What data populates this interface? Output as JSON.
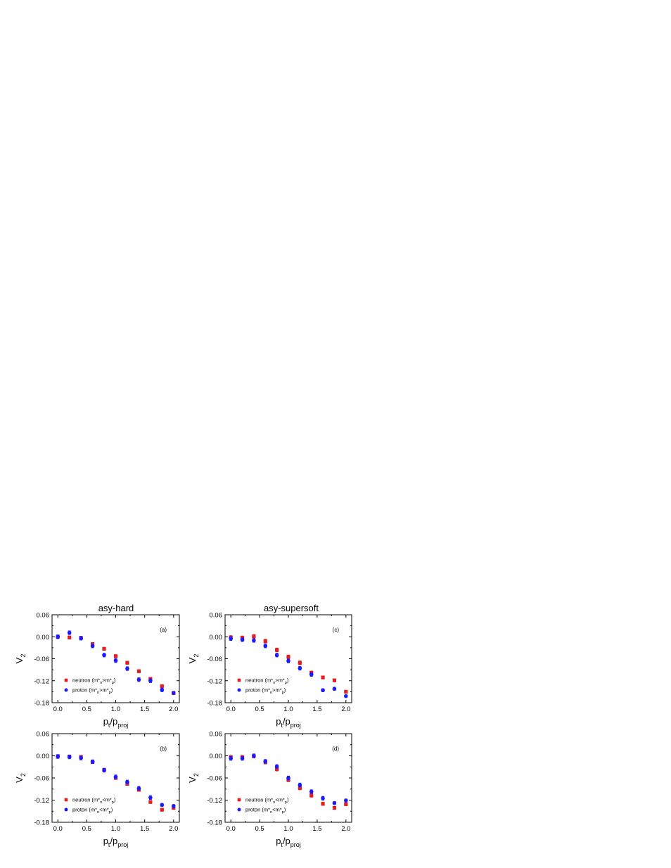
{
  "column_titles": {
    "left": "asy-hard",
    "right": "asy-supersoft"
  },
  "colors": {
    "neutron": "#e41e1e",
    "proton": "#1a1aff",
    "axis": "#000000"
  },
  "chart_data": [
    {
      "type": "scatter",
      "panel_label": "(a)",
      "xlabel": {
        "main": "p",
        "sub1": "t",
        "mid": "/p",
        "sub2": "proj"
      },
      "ylabel": {
        "main": "V",
        "sub": "2"
      },
      "xlim": [
        -0.1,
        2.1
      ],
      "ylim": [
        -0.18,
        0.06
      ],
      "xticks": [
        "0.0",
        "0.5",
        "1.0",
        "1.5",
        "2.0"
      ],
      "yticks": [
        "0.06",
        "0.00",
        "-0.06",
        "-0.12",
        "-0.18"
      ],
      "legend_position": "bottom-left",
      "series": [
        {
          "name": "neutron",
          "marker": "square",
          "legend": {
            "pre": "neutron (m*",
            "s1": "n",
            "mid": ">m*",
            "s2": "p",
            "post": ")"
          },
          "x": [
            0.0,
            0.2,
            0.4,
            0.6,
            0.8,
            1.0,
            1.2,
            1.4,
            1.6,
            1.8,
            2.0
          ],
          "y": [
            0.0,
            -0.002,
            -0.003,
            -0.02,
            -0.033,
            -0.053,
            -0.071,
            -0.094,
            -0.115,
            -0.135,
            -0.154
          ],
          "err": [
            0.004,
            0.004,
            0.004,
            0.004,
            0.004,
            0.004,
            0.004,
            0.004,
            0.004,
            0.004,
            0.003
          ]
        },
        {
          "name": "proton",
          "marker": "circle",
          "legend": {
            "pre": "proton  (m*",
            "s1": "n",
            "mid": ">m*",
            "s2": "p",
            "post": ")"
          },
          "x": [
            0.0,
            0.2,
            0.4,
            0.6,
            0.8,
            1.0,
            1.2,
            1.4,
            1.6,
            1.8,
            2.0
          ],
          "y": [
            0.0,
            0.011,
            -0.004,
            -0.025,
            -0.05,
            -0.065,
            -0.087,
            -0.117,
            -0.12,
            -0.145,
            -0.153
          ],
          "err": [
            0.005,
            0.005,
            0.005,
            0.005,
            0.005,
            0.005,
            0.005,
            0.005,
            0.005,
            0.005,
            0.003
          ]
        }
      ]
    },
    {
      "type": "scatter",
      "panel_label": "(c)",
      "xlabel": {
        "main": "p",
        "sub1": "t",
        "mid": "/p",
        "sub2": "proj"
      },
      "ylabel": {
        "main": "V",
        "sub": "2"
      },
      "xlim": [
        -0.1,
        2.1
      ],
      "ylim": [
        -0.18,
        0.06
      ],
      "xticks": [
        "0.0",
        "0.5",
        "1.0",
        "1.5",
        "2.0"
      ],
      "yticks": [
        "0.06",
        "0.00",
        "-0.06",
        "-0.12",
        "-0.18"
      ],
      "legend_position": "bottom-left",
      "series": [
        {
          "name": "neutron",
          "marker": "square",
          "legend": {
            "pre": "neutron (m*",
            "s1": "n",
            "mid": ">m*",
            "s2": "p",
            "post": ")"
          },
          "x": [
            0.0,
            0.2,
            0.4,
            0.6,
            0.8,
            1.0,
            1.2,
            1.4,
            1.6,
            1.8,
            2.0
          ],
          "y": [
            -0.002,
            -0.003,
            0.001,
            -0.012,
            -0.036,
            -0.055,
            -0.071,
            -0.098,
            -0.111,
            -0.119,
            -0.15
          ],
          "err": [
            0.005,
            0.005,
            0.005,
            0.005,
            0.005,
            0.005,
            0.005,
            0.004,
            0.004,
            0.004,
            0.003
          ]
        },
        {
          "name": "proton",
          "marker": "circle",
          "legend": {
            "pre": "proton  (m*",
            "s1": "n",
            "mid": ">m*",
            "s2": "p",
            "post": ")"
          },
          "x": [
            0.0,
            0.2,
            0.4,
            0.6,
            0.8,
            1.0,
            1.2,
            1.4,
            1.6,
            1.8,
            2.0
          ],
          "y": [
            -0.005,
            -0.008,
            -0.01,
            -0.025,
            -0.05,
            -0.066,
            -0.086,
            -0.103,
            -0.146,
            -0.142,
            -0.162
          ],
          "err": [
            0.005,
            0.005,
            0.005,
            0.005,
            0.005,
            0.005,
            0.005,
            0.005,
            0.004,
            0.004,
            0.003
          ]
        }
      ]
    },
    {
      "type": "scatter",
      "panel_label": "(b)",
      "xlabel": {
        "main": "p",
        "sub1": "t",
        "mid": "/p",
        "sub2": "proj"
      },
      "ylabel": {
        "main": "V",
        "sub": "2"
      },
      "xlim": [
        -0.1,
        2.1
      ],
      "ylim": [
        -0.18,
        0.06
      ],
      "xticks": [
        "0.0",
        "0.5",
        "1.0",
        "1.5",
        "2.0"
      ],
      "yticks": [
        "0.06",
        "0.00",
        "-0.06",
        "-0.12",
        "-0.18"
      ],
      "legend_position": "bottom-left",
      "series": [
        {
          "name": "neutron",
          "marker": "square",
          "legend": {
            "pre": "neutron (m*",
            "s1": "n",
            "mid": "<m*",
            "s2": "p",
            "post": ")"
          },
          "x": [
            0.0,
            0.2,
            0.4,
            0.6,
            0.8,
            1.0,
            1.2,
            1.4,
            1.6,
            1.8,
            2.0
          ],
          "y": [
            -0.001,
            -0.002,
            -0.003,
            -0.017,
            -0.038,
            -0.06,
            -0.076,
            -0.092,
            -0.125,
            -0.146,
            -0.141
          ],
          "err": [
            0.004,
            0.004,
            0.004,
            0.004,
            0.004,
            0.004,
            0.004,
            0.004,
            0.004,
            0.004,
            0.004
          ]
        },
        {
          "name": "proton",
          "marker": "circle",
          "legend": {
            "pre": "proton  (m*",
            "s1": "n",
            "mid": "<m*",
            "s2": "p",
            "post": ")"
          },
          "x": [
            0.0,
            0.2,
            0.4,
            0.6,
            0.8,
            1.0,
            1.2,
            1.4,
            1.6,
            1.8,
            2.0
          ],
          "y": [
            -0.002,
            -0.003,
            -0.006,
            -0.016,
            -0.039,
            -0.057,
            -0.071,
            -0.088,
            -0.113,
            -0.133,
            -0.136
          ],
          "err": [
            0.005,
            0.005,
            0.005,
            0.005,
            0.005,
            0.005,
            0.005,
            0.005,
            0.005,
            0.004,
            0.004
          ]
        }
      ]
    },
    {
      "type": "scatter",
      "panel_label": "(d)",
      "xlabel": {
        "main": "p",
        "sub1": "t",
        "mid": "/p",
        "sub2": "proj"
      },
      "ylabel": {
        "main": "V",
        "sub": "2"
      },
      "xlim": [
        -0.1,
        2.1
      ],
      "ylim": [
        -0.18,
        0.06
      ],
      "xticks": [
        "0.0",
        "0.5",
        "1.0",
        "1.5",
        "2.0"
      ],
      "yticks": [
        "0.06",
        "0.00",
        "-0.06",
        "-0.12",
        "-0.18"
      ],
      "legend_position": "bottom-left",
      "series": [
        {
          "name": "neutron",
          "marker": "square",
          "legend": {
            "pre": "neutron (m*",
            "s1": "n",
            "mid": "<m*",
            "s2": "p",
            "post": ")"
          },
          "x": [
            0.0,
            0.2,
            0.4,
            0.6,
            0.8,
            1.0,
            1.2,
            1.4,
            1.6,
            1.8,
            2.0
          ],
          "y": [
            -0.004,
            -0.004,
            -0.001,
            -0.017,
            -0.036,
            -0.065,
            -0.087,
            -0.107,
            -0.13,
            -0.141,
            -0.131
          ],
          "err": [
            0.005,
            0.005,
            0.005,
            0.005,
            0.005,
            0.005,
            0.005,
            0.005,
            0.004,
            0.004,
            0.004
          ]
        },
        {
          "name": "proton",
          "marker": "circle",
          "legend": {
            "pre": "proton  (m*",
            "s1": "n",
            "mid": "<m*",
            "s2": "p",
            "post": ")"
          },
          "x": [
            0.0,
            0.2,
            0.4,
            0.6,
            0.8,
            1.0,
            1.2,
            1.4,
            1.6,
            1.8,
            2.0
          ],
          "y": [
            -0.007,
            -0.007,
            0.0,
            -0.015,
            -0.029,
            -0.06,
            -0.079,
            -0.097,
            -0.115,
            -0.128,
            -0.121
          ],
          "err": [
            0.005,
            0.005,
            0.005,
            0.005,
            0.005,
            0.005,
            0.005,
            0.005,
            0.005,
            0.004,
            0.004
          ]
        }
      ]
    }
  ]
}
